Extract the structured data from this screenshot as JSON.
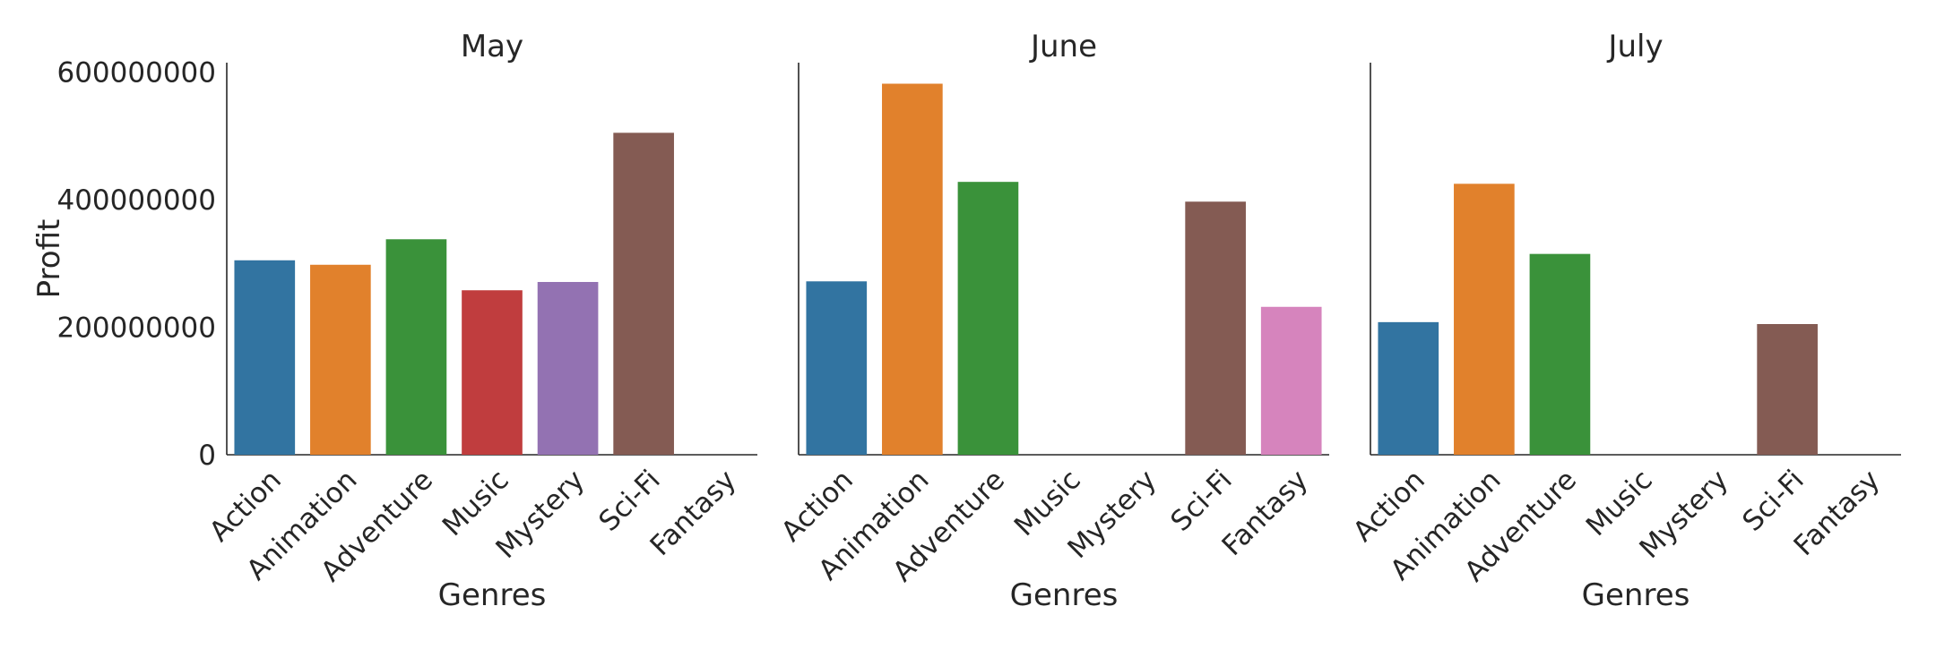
{
  "chart_data": {
    "type": "bar",
    "ylabel": "Profit",
    "ylim": [
      0,
      615000000
    ],
    "yticks": [
      "0",
      "200000000",
      "400000000",
      "600000000"
    ],
    "ytick_values": [
      0,
      200000000,
      400000000,
      600000000
    ],
    "grid": false,
    "facets": [
      {
        "title": "May",
        "xlabel": "Genres",
        "categories": [
          "Action",
          "Animation",
          "Adventure",
          "Music",
          "Mystery",
          "Sci-Fi",
          "Fantasy"
        ],
        "values": [
          305000000,
          298000000,
          338000000,
          258000000,
          271000000,
          505000000,
          null
        ]
      },
      {
        "title": "June",
        "xlabel": "Genres",
        "categories": [
          "Action",
          "Animation",
          "Adventure",
          "Music",
          "Mystery",
          "Sci-Fi",
          "Fantasy"
        ],
        "values": [
          272000000,
          582000000,
          428000000,
          null,
          null,
          397000000,
          232000000
        ]
      },
      {
        "title": "July",
        "xlabel": "Genres",
        "categories": [
          "Action",
          "Animation",
          "Adventure",
          "Music",
          "Mystery",
          "Sci-Fi",
          "Fantasy"
        ],
        "values": [
          208000000,
          425000000,
          315000000,
          null,
          null,
          205000000,
          null
        ]
      }
    ],
    "colors": [
      "#3274a1",
      "#e1812c",
      "#3a923a",
      "#c03d3e",
      "#9372b2",
      "#845b53",
      "#d684bd"
    ]
  }
}
